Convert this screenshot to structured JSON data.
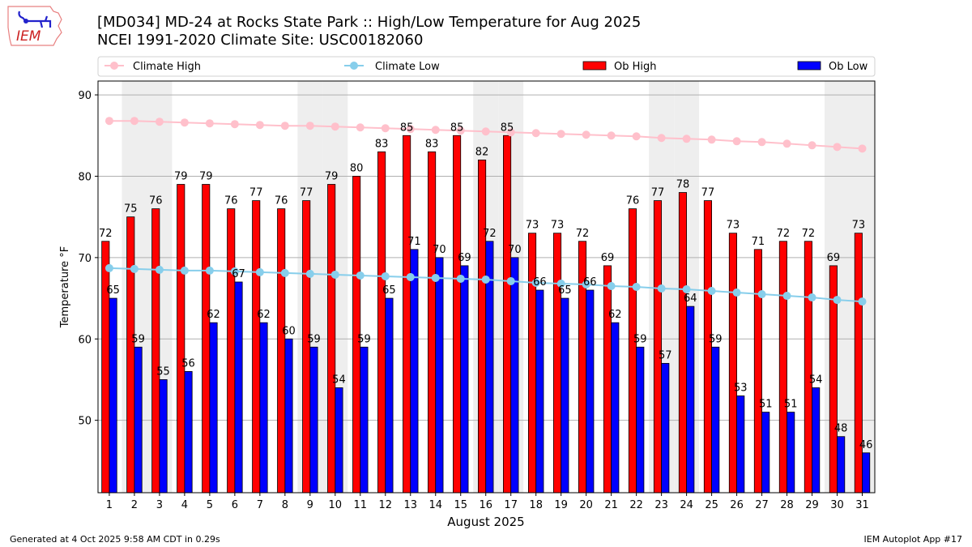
{
  "header": {
    "title_line1": "[MD034] MD-24 at Rocks State Park :: High/Low Temperature for Aug 2025",
    "title_line2": "NCEI 1991-2020 Climate Site: USC00182060",
    "logo_text": "IEM"
  },
  "footer": {
    "generated": "Generated at 4 Oct 2025 9:58 AM CDT in 0.29s",
    "app": "IEM Autoplot App #17"
  },
  "colors": {
    "ob_high": "#ff0000",
    "ob_low": "#0000ff",
    "climate_high": "#ffc0cb",
    "climate_low": "#87ceeb",
    "weekend_shade": "#eeeeee"
  },
  "chart_data": {
    "type": "bar",
    "title": "[MD034] MD-24 at Rocks State Park :: High/Low Temperature for Aug 2025",
    "subtitle": "NCEI 1991-2020 Climate Site: USC00182060",
    "xlabel": "August 2025",
    "ylabel": "Temperature °F",
    "ylim": [
      41.1,
      91.7
    ],
    "xlim": [
      0.55,
      31.5
    ],
    "yticks": [
      50,
      60,
      70,
      80,
      90
    ],
    "grid": true,
    "legend_position": "top",
    "legend": [
      "Climate High",
      "Climate Low",
      "Ob High",
      "Ob Low"
    ],
    "categories": [
      1,
      2,
      3,
      4,
      5,
      6,
      7,
      8,
      9,
      10,
      11,
      12,
      13,
      14,
      15,
      16,
      17,
      18,
      19,
      20,
      21,
      22,
      23,
      24,
      25,
      26,
      27,
      28,
      29,
      30,
      31
    ],
    "weekend_days": [
      2,
      3,
      9,
      10,
      16,
      17,
      23,
      24,
      30,
      31
    ],
    "series": [
      {
        "name": "Ob High",
        "type": "bar",
        "values": [
          72,
          75,
          76,
          79,
          79,
          76,
          77,
          76,
          77,
          79,
          80,
          83,
          85,
          83,
          85,
          82,
          85,
          73,
          73,
          72,
          69,
          76,
          77,
          78,
          77,
          73,
          71,
          72,
          72,
          69,
          73
        ]
      },
      {
        "name": "Ob Low",
        "type": "bar",
        "values": [
          65,
          59,
          55,
          56,
          62,
          67,
          62,
          60,
          59,
          54,
          59,
          65,
          71,
          70,
          69,
          72,
          70,
          66,
          65,
          66,
          62,
          59,
          57,
          64,
          59,
          53,
          51,
          51,
          54,
          48,
          46
        ]
      },
      {
        "name": "Climate High",
        "type": "line",
        "values": [
          86.8,
          86.8,
          86.7,
          86.6,
          86.5,
          86.4,
          86.3,
          86.2,
          86.2,
          86.1,
          86.0,
          85.9,
          85.8,
          85.7,
          85.6,
          85.5,
          85.4,
          85.3,
          85.2,
          85.1,
          85.0,
          84.9,
          84.7,
          84.6,
          84.5,
          84.3,
          84.2,
          84.0,
          83.8,
          83.6,
          83.4
        ]
      },
      {
        "name": "Climate Low",
        "type": "line",
        "values": [
          68.7,
          68.6,
          68.5,
          68.4,
          68.4,
          68.3,
          68.2,
          68.1,
          68.0,
          67.9,
          67.8,
          67.7,
          67.6,
          67.5,
          67.4,
          67.3,
          67.1,
          66.9,
          66.8,
          66.7,
          66.5,
          66.4,
          66.2,
          66.1,
          65.9,
          65.7,
          65.5,
          65.3,
          65.1,
          64.8,
          64.6
        ]
      }
    ]
  }
}
